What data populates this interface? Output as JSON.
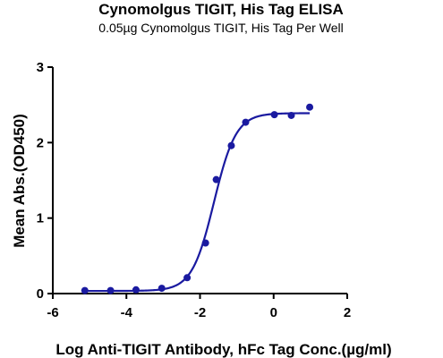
{
  "chart_data": {
    "type": "scatter",
    "title": "Cynomolgus TIGIT, His Tag ELISA",
    "subtitle": "0.05µg Cynomolgus TIGIT, His Tag Per Well",
    "xlabel": "Log Anti-TIGIT Antibody, hFc Tag Conc.(µg/ml)",
    "ylabel": "Mean Abs.(OD450)",
    "xlim": [
      -6,
      2
    ],
    "ylim": [
      0,
      3
    ],
    "xticks": [
      -6,
      -4,
      -2,
      0,
      2
    ],
    "yticks": [
      0,
      1,
      2,
      3
    ],
    "grid": false,
    "series": [
      {
        "x": [
          -5.13,
          -4.43,
          -3.74,
          -3.04,
          -2.35,
          -1.85,
          -1.56,
          -1.15,
          -0.76,
          0.02,
          0.48,
          0.98
        ],
        "y": [
          0.04,
          0.04,
          0.05,
          0.07,
          0.21,
          0.67,
          1.51,
          1.96,
          2.27,
          2.37,
          2.36,
          2.47
        ],
        "color": "#1a1aa0",
        "fit": {
          "model": "4PL",
          "bottom": 0.035,
          "top": 2.39,
          "logEC50": -1.62,
          "hill": 1.45,
          "range": [
            -5.13,
            0.98
          ]
        }
      }
    ]
  }
}
